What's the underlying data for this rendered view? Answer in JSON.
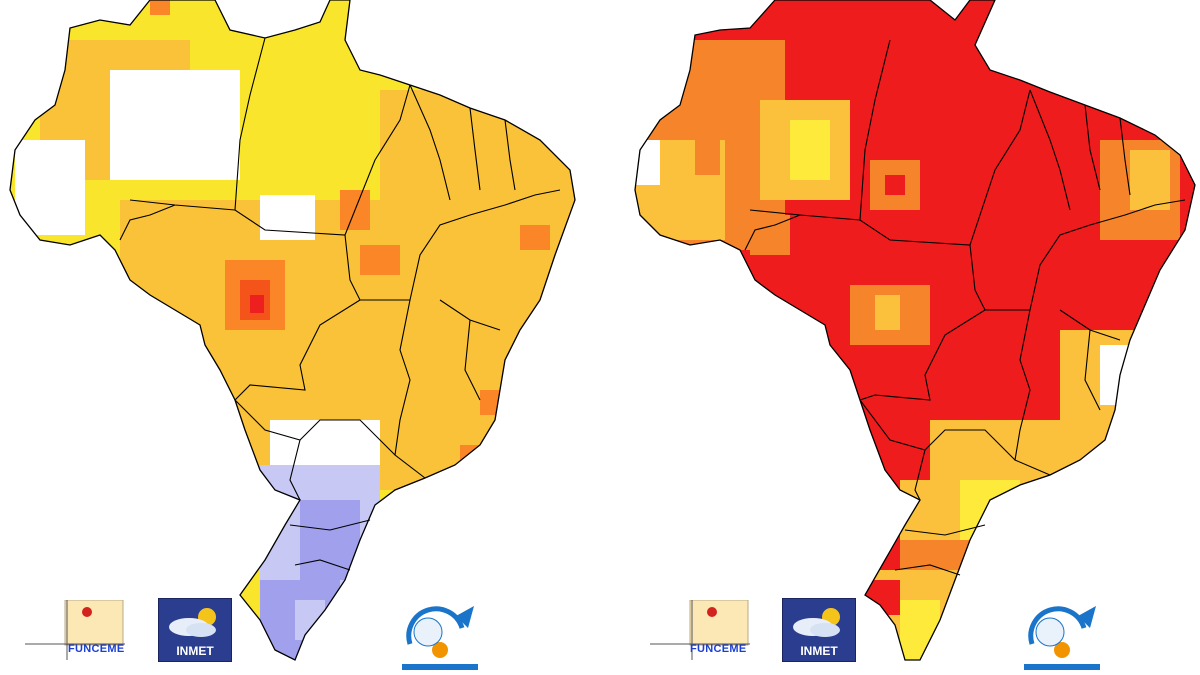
{
  "maps": [
    {
      "id": "left",
      "palette": {
        "white": "#ffffff",
        "pale_yellow": "#fdf6b4",
        "yellow": "#f9e62c",
        "light_orange": "#f9c239",
        "orange": "#fb8628",
        "red_orange": "#f4541a",
        "red": "#ee1f1f",
        "light_blue": "#c8c8f5",
        "blue": "#a0a0ec"
      },
      "logos": {
        "funceme": "FUNCEME",
        "inmet": "INMET"
      }
    },
    {
      "id": "right",
      "palette": {
        "white": "#ffffff",
        "yellow": "#fdea3a",
        "light_orange": "#fbc13c",
        "orange": "#f6842a",
        "red": "#ee1c1c"
      },
      "logos": {
        "funceme": "FUNCEME",
        "inmet": "INMET"
      }
    }
  ]
}
